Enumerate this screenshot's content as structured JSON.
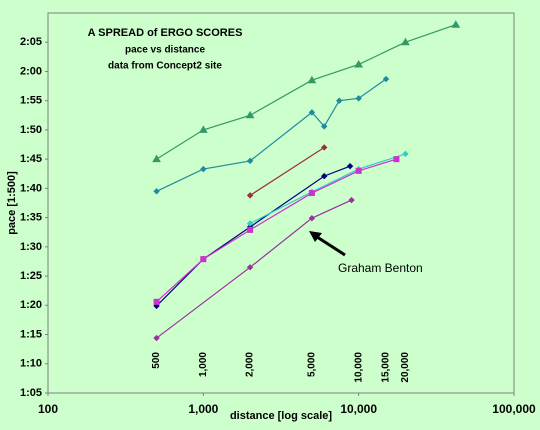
{
  "chart_data": {
    "type": "line",
    "title": "A SPREAD of ERGO SCORES",
    "subtitle": "pace vs distance",
    "source": "data from Concept2 site",
    "x_label": "distance [log scale]",
    "y_label": "pace [1:500]",
    "x_scale": "log",
    "grid": false,
    "xlim": [
      100,
      100000
    ],
    "xticks": [
      100,
      {
        "value": 1000,
        "label": "1,000"
      },
      {
        "value": 10000,
        "label": "10,000"
      },
      {
        "value": 100000,
        "label": "100,000"
      }
    ],
    "ylim": [
      65,
      130
    ],
    "yticks": [
      {
        "value": 65,
        "label": "1:05"
      },
      {
        "value": 70,
        "label": "1:10"
      },
      {
        "value": 75,
        "label": "1:15"
      },
      {
        "value": 80,
        "label": "1:20"
      },
      {
        "value": 85,
        "label": "1:25"
      },
      {
        "value": 90,
        "label": "1:30"
      },
      {
        "value": 95,
        "label": "1:35"
      },
      {
        "value": 100,
        "label": "1:40"
      },
      {
        "value": 105,
        "label": "1:45"
      },
      {
        "value": 110,
        "label": "1:50"
      },
      {
        "value": 115,
        "label": "1:55"
      },
      {
        "value": 120,
        "label": "2:00"
      },
      {
        "value": 125,
        "label": "2:05"
      }
    ],
    "distance_labels": [
      {
        "value": 500,
        "label": "500"
      },
      {
        "value": 1000,
        "label": "1,000"
      },
      {
        "value": 2000,
        "label": "2,000"
      },
      {
        "value": 5000,
        "label": "5,000"
      },
      {
        "value": 10000,
        "label": "10,000"
      },
      {
        "value": 15000,
        "label": "15,000"
      },
      {
        "value": 20000,
        "label": "20,000"
      }
    ],
    "annotation": "Graham Benton",
    "series": [
      {
        "color": "#339966",
        "marker": "triangle",
        "x": [
          500,
          1000,
          2000,
          5000,
          10000,
          20000,
          42195
        ],
        "values": [
          105,
          110,
          112.5,
          118.5,
          121.2,
          125,
          128
        ]
      },
      {
        "color": "#1f8aa0",
        "marker": "diamond",
        "x": [
          500,
          1000,
          2000,
          5000,
          6000,
          7500,
          10000,
          15000
        ],
        "values": [
          99.5,
          103.3,
          104.7,
          113,
          110.6,
          115,
          115.4,
          118.7
        ]
      },
      {
        "color": "#993333",
        "marker": "diamond",
        "x": [
          2000,
          6000
        ],
        "values": [
          98.8,
          107
        ]
      },
      {
        "color": "#000080",
        "marker": "diamond",
        "x": [
          500,
          1000,
          2000,
          6000,
          8800
        ],
        "values": [
          79.9,
          87.9,
          93.4,
          102.1,
          103.8
        ]
      },
      {
        "color": "#33cccc",
        "marker": "diamond",
        "x": [
          2000,
          5000,
          10000,
          20000
        ],
        "values": [
          94,
          99.4,
          103.3,
          105.9
        ]
      },
      {
        "color": "#cc33cc",
        "marker": "square",
        "x": [
          500,
          1000,
          2000,
          5000,
          10000,
          17500
        ],
        "values": [
          80.6,
          87.9,
          92.9,
          99.2,
          103,
          105
        ]
      },
      {
        "color": "#993399",
        "marker": "diamond",
        "x": [
          500,
          2000,
          5000,
          9000
        ],
        "values": [
          74.4,
          86.5,
          94.9,
          98
        ]
      }
    ]
  }
}
